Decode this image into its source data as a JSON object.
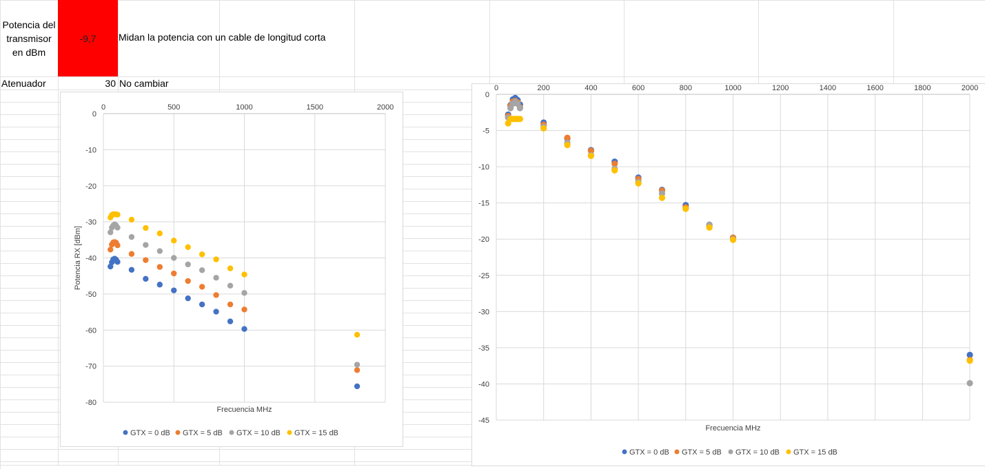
{
  "sheet": {
    "tx_label": "Potencia del transmisor en dBm",
    "tx_label_lines": [
      "Potencia del",
      "transmisor",
      "en dBm"
    ],
    "tx_value": "-9,7",
    "tx_note": "Midan la potencia con un cable de longitud corta",
    "att_label": "Atenuador",
    "att_value": "30",
    "att_note": "No cambiar",
    "tx_cell_color": "#ff0000"
  },
  "chart_data": [
    {
      "type": "scatter",
      "title": "",
      "xlabel": "Frecuencia MHz",
      "ylabel": "Potencia RX [dBm]",
      "xlim": [
        0,
        2000
      ],
      "ylim": [
        -80,
        0
      ],
      "xticks": [
        0,
        500,
        1000,
        1500,
        2000
      ],
      "yticks": [
        0,
        -10,
        -20,
        -30,
        -40,
        -50,
        -60,
        -70,
        -80
      ],
      "grid": true,
      "legend_position": "bottom",
      "series": [
        {
          "name": "GTX = 0 dB",
          "color": "#4472c4",
          "x": [
            50,
            60,
            70,
            80,
            90,
            100,
            200,
            300,
            400,
            500,
            600,
            700,
            800,
            900,
            1000,
            1800
          ],
          "y": [
            -42.4,
            -41.2,
            -40.4,
            -40.2,
            -40.5,
            -41.1,
            -43.3,
            -45.8,
            -47.4,
            -49.0,
            -51.2,
            -52.9,
            -54.9,
            -57.6,
            -59.7,
            -75.6
          ]
        },
        {
          "name": "GTX = 5 dB",
          "color": "#ed7d31",
          "x": [
            50,
            60,
            70,
            80,
            90,
            100,
            200,
            300,
            400,
            500,
            600,
            700,
            800,
            900,
            1000,
            1800
          ],
          "y": [
            -37.7,
            -36.3,
            -35.7,
            -35.6,
            -35.8,
            -36.5,
            -38.9,
            -40.6,
            -42.5,
            -44.3,
            -46.4,
            -48.0,
            -50.3,
            -52.9,
            -54.3,
            -71.1
          ]
        },
        {
          "name": "GTX = 10 dB",
          "color": "#a5a5a5",
          "x": [
            50,
            60,
            70,
            80,
            90,
            100,
            200,
            300,
            400,
            500,
            600,
            700,
            800,
            900,
            1000,
            1800
          ],
          "y": [
            -32.9,
            -31.6,
            -31.0,
            -30.7,
            -31.0,
            -31.6,
            -34.2,
            -36.4,
            -38.1,
            -40.0,
            -41.8,
            -43.4,
            -45.5,
            -47.7,
            -49.7,
            -69.6
          ]
        },
        {
          "name": "GTX = 15 dB",
          "color": "#ffc000",
          "x": [
            50,
            60,
            70,
            80,
            90,
            100,
            200,
            300,
            400,
            500,
            600,
            700,
            800,
            900,
            1000,
            1800
          ],
          "y": [
            -28.8,
            -28.1,
            -27.9,
            -27.9,
            -27.9,
            -28.0,
            -29.4,
            -31.7,
            -33.2,
            -35.2,
            -37.0,
            -39.0,
            -40.4,
            -42.9,
            -44.6,
            -61.3
          ]
        }
      ]
    },
    {
      "type": "scatter",
      "title": "",
      "xlabel": "Frecuencia MHz",
      "ylabel": "",
      "xlim": [
        0,
        2000
      ],
      "ylim": [
        -45,
        0
      ],
      "xticks": [
        0,
        200,
        400,
        600,
        800,
        1000,
        1200,
        1400,
        1600,
        1800,
        2000
      ],
      "yticks": [
        0,
        -5,
        -10,
        -15,
        -20,
        -25,
        -30,
        -35,
        -40,
        -45
      ],
      "grid": true,
      "legend_position": "bottom",
      "series": [
        {
          "name": "GTX = 0 dB",
          "color": "#4472c4",
          "x": [
            50,
            60,
            70,
            80,
            90,
            100,
            200,
            300,
            400,
            500,
            600,
            700,
            800,
            900,
            1000,
            2000
          ],
          "y": [
            -2.8,
            -1.5,
            -0.7,
            -0.5,
            -0.8,
            -1.4,
            -3.9,
            -6.1,
            -7.7,
            -9.3,
            -11.5,
            -13.2,
            -15.3,
            -18.0,
            -19.8,
            -36.0
          ]
        },
        {
          "name": "GTX = 5 dB",
          "color": "#ed7d31",
          "x": [
            50,
            60,
            70,
            80,
            90,
            100,
            200,
            300,
            400,
            500,
            600,
            700,
            800,
            900,
            1000,
            2000
          ],
          "y": [
            -3.0,
            -1.6,
            -1.0,
            -0.9,
            -1.1,
            -1.8,
            -4.2,
            -6.0,
            -7.8,
            -9.6,
            -11.7,
            -13.3,
            -15.6,
            -18.2,
            -19.8,
            -36.7
          ]
        },
        {
          "name": "GTX = 10 dB",
          "color": "#a5a5a5",
          "x": [
            50,
            60,
            70,
            80,
            90,
            100,
            200,
            300,
            400,
            500,
            600,
            700,
            800,
            900,
            1000,
            2000
          ],
          "y": [
            -3.2,
            -1.9,
            -1.3,
            -1.0,
            -1.3,
            -1.9,
            -4.5,
            -6.7,
            -8.4,
            -10.3,
            -12.1,
            -13.7,
            -15.8,
            -18.0,
            -20.0,
            -39.9
          ]
        },
        {
          "name": "GTX = 15 dB",
          "color": "#ffc000",
          "x": [
            50,
            60,
            70,
            80,
            90,
            100,
            200,
            300,
            400,
            500,
            600,
            700,
            800,
            900,
            1000,
            2000
          ],
          "y": [
            -4.0,
            -3.4,
            -3.4,
            -3.4,
            -3.4,
            -3.4,
            -4.7,
            -7.0,
            -8.5,
            -10.5,
            -12.3,
            -14.3,
            -15.8,
            -18.4,
            -20.1,
            -36.8
          ]
        }
      ]
    }
  ]
}
